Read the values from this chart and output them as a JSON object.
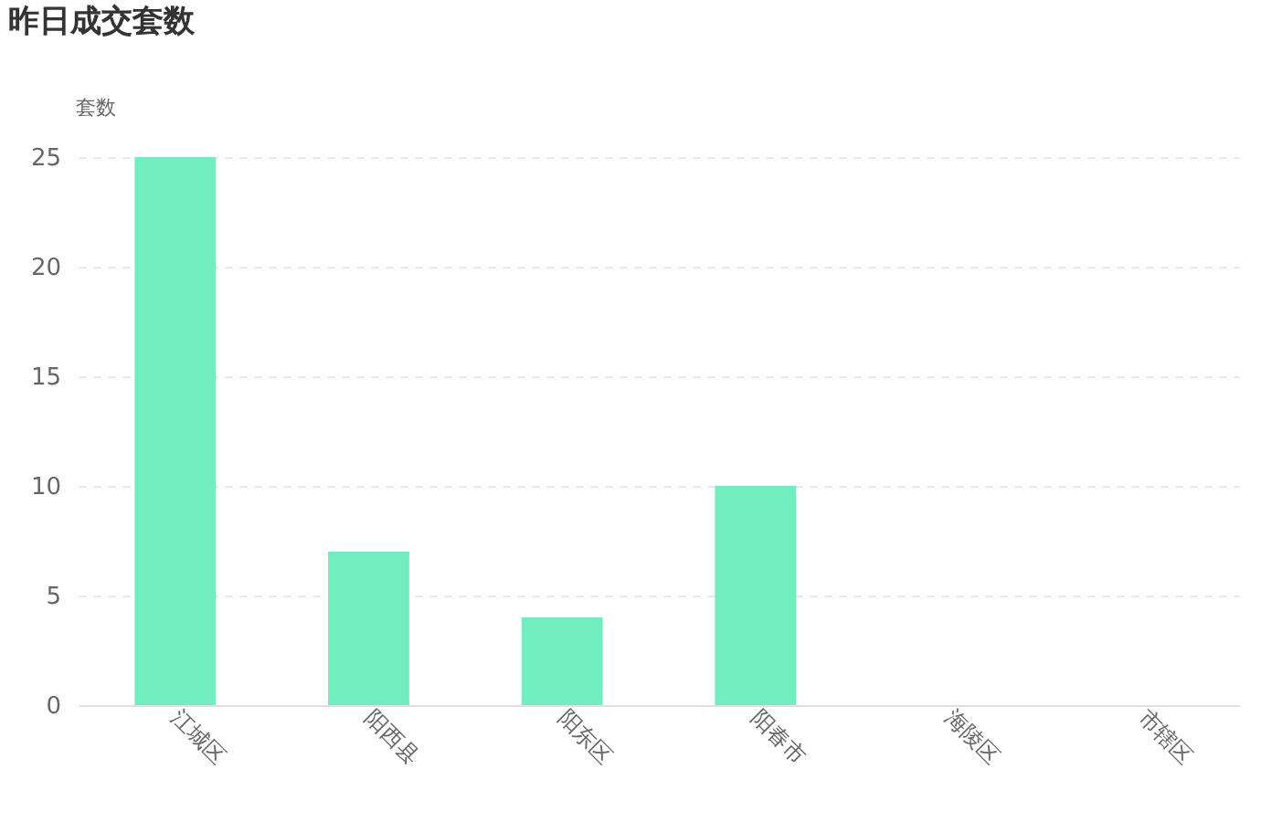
{
  "chart_data": {
    "type": "bar",
    "title": "昨日成交套数",
    "ylabel": "套数",
    "categories": [
      "江城区",
      "阳西县",
      "阳东区",
      "阳春市",
      "海陵区",
      "市辖区"
    ],
    "values": [
      25,
      7,
      4,
      10,
      0,
      0
    ],
    "color": "#72edc0",
    "ylim": [
      0,
      25
    ],
    "yticks": [
      0,
      5,
      10,
      15,
      20,
      25
    ],
    "grid": "y"
  }
}
